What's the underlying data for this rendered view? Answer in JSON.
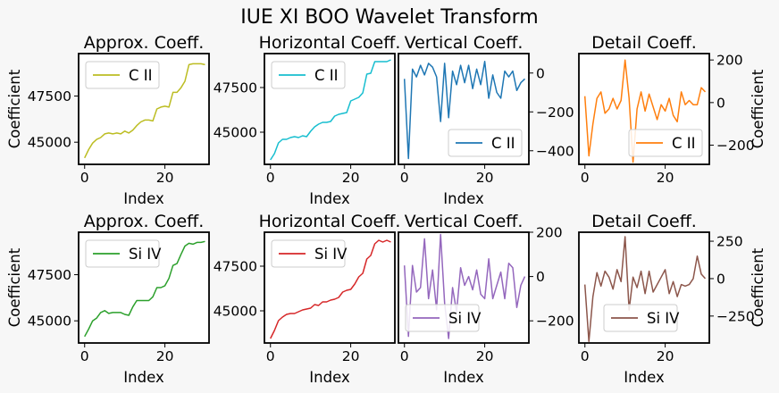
{
  "figure": {
    "title": "IUE XI BOO Wavelet Transform",
    "background": "#f7f7f7"
  },
  "chart_data": [
    {
      "type": "line",
      "title": "Approx. Coeff.",
      "xlabel": "Index",
      "ylabel": "Coefficient",
      "xlim": [
        -1.5,
        31
      ],
      "ylim": [
        43800,
        49800
      ],
      "xticks": [
        0,
        20
      ],
      "yticks": [
        45000,
        47500
      ],
      "ytick_labels": [
        "45000",
        "47500"
      ],
      "y_axis_side": "left",
      "legend_position": "top-left",
      "series": [
        {
          "name": "C II",
          "color": "#bcbd22",
          "x": [
            0,
            1,
            2,
            3,
            4,
            5,
            6,
            7,
            8,
            9,
            10,
            11,
            12,
            13,
            14,
            15,
            16,
            17,
            18,
            19,
            20,
            21,
            22,
            23,
            24,
            25,
            26,
            27,
            28,
            29,
            30
          ],
          "values": [
            44150,
            44600,
            44950,
            45150,
            45250,
            45450,
            45500,
            45450,
            45500,
            45450,
            45600,
            45500,
            45650,
            45900,
            46100,
            46200,
            46200,
            46150,
            46800,
            46900,
            46950,
            46900,
            47700,
            47700,
            47950,
            48300,
            49200,
            49250,
            49250,
            49250,
            49200
          ]
        }
      ]
    },
    {
      "type": "line",
      "title": "Horizontal Coeff.",
      "xlabel": "Index",
      "ylabel": "",
      "xlim": [
        -1.5,
        31
      ],
      "ylim": [
        43200,
        49400
      ],
      "xticks": [
        0,
        20
      ],
      "yticks": [
        45000,
        47500
      ],
      "ytick_labels": [
        "45000",
        "47500"
      ],
      "y_axis_side": "left",
      "legend_position": "top-left",
      "series": [
        {
          "name": "C II",
          "color": "#17becf",
          "x": [
            0,
            1,
            2,
            3,
            4,
            5,
            6,
            7,
            8,
            9,
            10,
            11,
            12,
            13,
            14,
            15,
            16,
            17,
            18,
            19,
            20,
            21,
            22,
            23,
            24,
            25,
            26,
            27,
            28,
            29,
            30
          ],
          "values": [
            43450,
            43800,
            44400,
            44600,
            44600,
            44700,
            44750,
            44700,
            44800,
            44750,
            45050,
            45300,
            45450,
            45550,
            45550,
            45600,
            45900,
            46000,
            46050,
            46100,
            46750,
            46850,
            46950,
            47200,
            48250,
            48300,
            48950,
            48950,
            48950,
            48950,
            49050
          ]
        }
      ]
    },
    {
      "type": "line",
      "title": "Vertical Coeff.",
      "xlabel": "Index",
      "ylabel": "",
      "xlim": [
        -1.5,
        31
      ],
      "ylim": [
        -470,
        100
      ],
      "xticks": [
        0,
        20
      ],
      "yticks": [
        0,
        -200,
        -400
      ],
      "ytick_labels": [
        "0",
        "−200",
        "−400"
      ],
      "y_axis_side": "right",
      "legend_position": "bottom-right",
      "series": [
        {
          "name": "C II",
          "color": "#1f77b4",
          "x": [
            0,
            1,
            2,
            3,
            4,
            5,
            6,
            7,
            8,
            9,
            10,
            11,
            12,
            13,
            14,
            15,
            16,
            17,
            18,
            19,
            20,
            21,
            22,
            23,
            24,
            25,
            26,
            27,
            28,
            29,
            30
          ],
          "values": [
            -30,
            -440,
            20,
            -20,
            40,
            -10,
            50,
            30,
            -20,
            -250,
            50,
            -230,
            10,
            -60,
            40,
            -50,
            40,
            -80,
            20,
            -60,
            60,
            -130,
            -10,
            -100,
            -130,
            10,
            -20,
            10,
            -90,
            -50,
            -30
          ]
        }
      ]
    },
    {
      "type": "line",
      "title": "Detail Coeff.",
      "xlabel": "",
      "ylabel": "Coefficient",
      "xlim": [
        -1.5,
        31
      ],
      "ylim": [
        -290,
        230
      ],
      "xticks": [
        0,
        20
      ],
      "yticks": [
        200,
        0,
        -200
      ],
      "ytick_labels": [
        "200",
        "0",
        "−200"
      ],
      "y_axis_side": "right",
      "legend_position": "bottom-right",
      "series": [
        {
          "name": "C II",
          "color": "#ff7f0e",
          "x": [
            0,
            1,
            2,
            3,
            4,
            5,
            6,
            7,
            8,
            9,
            10,
            11,
            12,
            13,
            14,
            15,
            16,
            17,
            18,
            19,
            20,
            21,
            22,
            23,
            24,
            25,
            26,
            27,
            28,
            29,
            30
          ],
          "values": [
            30,
            -250,
            -100,
            20,
            50,
            -50,
            -30,
            20,
            -30,
            10,
            200,
            20,
            -280,
            -30,
            50,
            -40,
            40,
            -20,
            -80,
            -10,
            -40,
            20,
            -60,
            -90,
            50,
            -10,
            10,
            -10,
            -10,
            70,
            50
          ]
        }
      ]
    },
    {
      "type": "line",
      "title": "Approx. Coeff.",
      "xlabel": "Index",
      "ylabel": "Coefficient",
      "xlim": [
        -1.5,
        31
      ],
      "ylim": [
        43800,
        49800
      ],
      "xticks": [
        0,
        20
      ],
      "yticks": [
        45000,
        47500
      ],
      "ytick_labels": [
        "45000",
        "47500"
      ],
      "y_axis_side": "left",
      "legend_position": "top-left",
      "series": [
        {
          "name": "Si IV",
          "color": "#2ca02c",
          "x": [
            0,
            1,
            2,
            3,
            4,
            5,
            6,
            7,
            8,
            9,
            10,
            11,
            12,
            13,
            14,
            15,
            16,
            17,
            18,
            19,
            20,
            21,
            22,
            23,
            24,
            25,
            26,
            27,
            28,
            29,
            30
          ],
          "values": [
            44150,
            44550,
            45000,
            45150,
            45450,
            45550,
            45400,
            45450,
            45450,
            45450,
            45350,
            45300,
            45750,
            46100,
            46100,
            46100,
            46100,
            46300,
            46800,
            46800,
            46900,
            47300,
            48000,
            48100,
            48600,
            49050,
            49200,
            49150,
            49250,
            49250,
            49300
          ]
        }
      ]
    },
    {
      "type": "line",
      "title": "Horizontal Coeff.",
      "xlabel": "Index",
      "ylabel": "",
      "xlim": [
        -1.5,
        31
      ],
      "ylim": [
        43200,
        49400
      ],
      "xticks": [
        0,
        20
      ],
      "yticks": [
        45000,
        47500
      ],
      "ytick_labels": [
        "45000",
        "47500"
      ],
      "y_axis_side": "left",
      "legend_position": "top-left",
      "series": [
        {
          "name": "Si IV",
          "color": "#d62728",
          "x": [
            0,
            1,
            2,
            3,
            4,
            5,
            6,
            7,
            8,
            9,
            10,
            11,
            12,
            13,
            14,
            15,
            16,
            17,
            18,
            19,
            20,
            21,
            22,
            23,
            24,
            25,
            26,
            27,
            28,
            29,
            30
          ],
          "values": [
            43450,
            43900,
            44450,
            44650,
            44800,
            44850,
            44850,
            44950,
            45050,
            45100,
            45150,
            45350,
            45300,
            45500,
            45500,
            45600,
            45650,
            45750,
            46050,
            46150,
            46200,
            46500,
            46900,
            47100,
            47900,
            48100,
            48750,
            48950,
            48850,
            48950,
            48850
          ]
        }
      ]
    },
    {
      "type": "line",
      "title": "Vertical Coeff.",
      "xlabel": "Index",
      "ylabel": "",
      "xlim": [
        -1.5,
        31
      ],
      "ylim": [
        -300,
        200
      ],
      "xticks": [
        0,
        20
      ],
      "yticks": [
        200,
        0,
        -200
      ],
      "ytick_labels": [
        "200",
        "0",
        "−200"
      ],
      "y_axis_side": "right",
      "legend_position": "bottom-left",
      "series": [
        {
          "name": "Si IV",
          "color": "#9467bd",
          "x": [
            0,
            1,
            2,
            3,
            4,
            5,
            6,
            7,
            8,
            9,
            10,
            11,
            12,
            13,
            14,
            15,
            16,
            17,
            18,
            19,
            20,
            21,
            22,
            23,
            24,
            25,
            26,
            27,
            28,
            29,
            30
          ],
          "values": [
            50,
            -270,
            50,
            -70,
            -50,
            170,
            -100,
            30,
            -150,
            190,
            -120,
            -280,
            -50,
            -160,
            40,
            -40,
            0,
            -60,
            30,
            -80,
            -100,
            80,
            -100,
            -40,
            20,
            -100,
            60,
            40,
            -140,
            -40,
            0
          ]
        }
      ]
    },
    {
      "type": "line",
      "title": "Detail Coeff.",
      "xlabel": "Index",
      "ylabel": "Coefficient",
      "xlim": [
        -1.5,
        31
      ],
      "ylim": [
        -430,
        310
      ],
      "xticks": [
        0,
        20
      ],
      "yticks": [
        250,
        0,
        -250
      ],
      "ytick_labels": [
        "250",
        "0",
        "−250"
      ],
      "y_axis_side": "right",
      "legend_position": "bottom-center",
      "series": [
        {
          "name": "Si IV",
          "color": "#8c564b",
          "x": [
            0,
            1,
            2,
            3,
            4,
            5,
            6,
            7,
            8,
            9,
            10,
            11,
            12,
            13,
            14,
            15,
            16,
            17,
            18,
            19,
            20,
            21,
            22,
            23,
            24,
            25,
            26,
            27,
            28,
            29,
            30
          ],
          "values": [
            -40,
            -420,
            -120,
            40,
            -50,
            50,
            10,
            -70,
            60,
            -20,
            280,
            -210,
            10,
            -60,
            50,
            -100,
            50,
            -90,
            -40,
            10,
            60,
            -100,
            -20,
            -120,
            -40,
            -50,
            -40,
            0,
            150,
            30,
            0
          ]
        }
      ]
    }
  ]
}
